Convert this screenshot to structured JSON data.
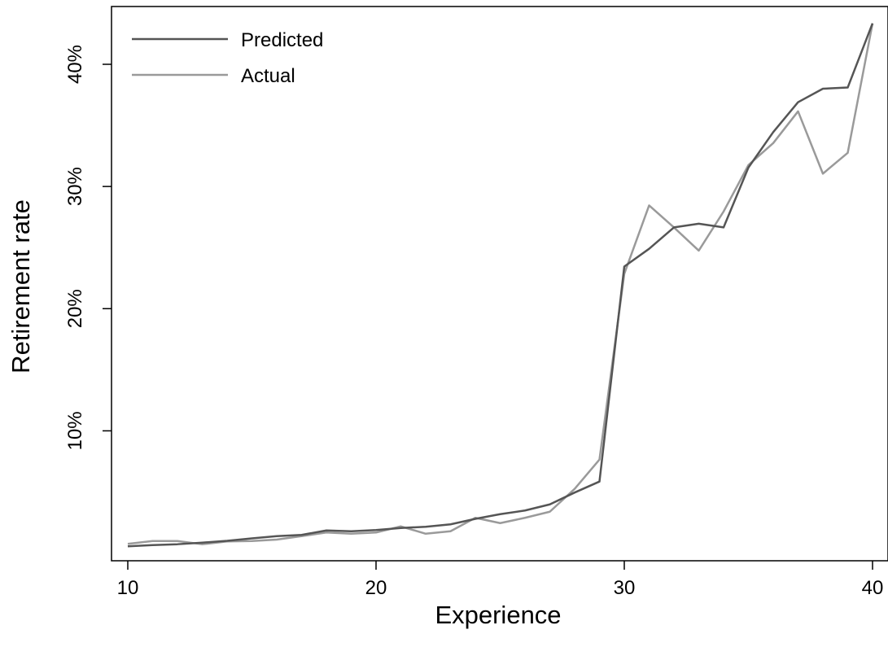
{
  "chart_data": {
    "type": "line",
    "title": "",
    "xlabel": "Experience",
    "ylabel": "Retirement rate",
    "xlim": [
      10,
      40
    ],
    "ylim": [
      0,
      0.45
    ],
    "x_ticks": [
      10,
      20,
      30,
      40
    ],
    "x_tick_labels": [
      "10",
      "20",
      "30",
      "40"
    ],
    "y_ticks": [
      0.1,
      0.2,
      0.3,
      0.4
    ],
    "y_tick_labels": [
      "10%",
      "20%",
      "30%",
      "40%"
    ],
    "grid": false,
    "legend_position": "top-left",
    "x": [
      10,
      11,
      12,
      13,
      14,
      15,
      16,
      17,
      18,
      19,
      20,
      21,
      22,
      23,
      24,
      25,
      26,
      27,
      28,
      29,
      30,
      31,
      32,
      33,
      34,
      35,
      36,
      37,
      38,
      39,
      40
    ],
    "series": [
      {
        "name": "Predicted",
        "color": "#555555",
        "values": [
          0.0055,
          0.0065,
          0.0072,
          0.0085,
          0.01,
          0.012,
          0.0138,
          0.0148,
          0.0185,
          0.0178,
          0.0188,
          0.0205,
          0.0215,
          0.0235,
          0.028,
          0.0318,
          0.0348,
          0.0398,
          0.0495,
          0.0585,
          0.2345,
          0.249,
          0.2665,
          0.2695,
          0.2665,
          0.3155,
          0.3445,
          0.369,
          0.38,
          0.381,
          0.4335
        ]
      },
      {
        "name": "Actual",
        "color": "#9a9a9a",
        "values": [
          0.0075,
          0.0098,
          0.0098,
          0.0072,
          0.0095,
          0.0098,
          0.011,
          0.0138,
          0.0168,
          0.0158,
          0.0168,
          0.0218,
          0.0158,
          0.0178,
          0.0288,
          0.0245,
          0.0288,
          0.0338,
          0.0525,
          0.0765,
          0.2285,
          0.2845,
          0.2665,
          0.2475,
          0.2795,
          0.3175,
          0.3355,
          0.3615,
          0.3105,
          0.3275,
          0.4335
        ]
      }
    ]
  }
}
